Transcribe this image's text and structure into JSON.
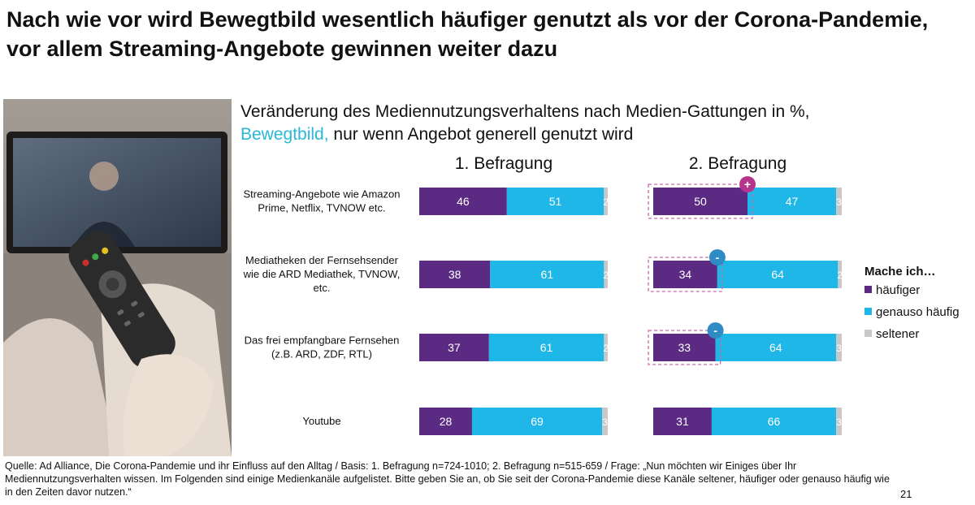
{
  "headline": "Nach wie vor wird Bewegtbild wesentlich häufiger genutzt als vor der Corona-Pandemie, vor allem Streaming-Angebote gewinnen weiter dazu",
  "subtitle": {
    "line1": "Veränderung des Mediennutzungsverhaltens nach Medien-Gattungen in %,",
    "highlight": "Bewegtbild,",
    "line2_rest": " nur wenn Angebot generell genutzt wird"
  },
  "colors": {
    "haeufiger": "#5b2b84",
    "genauso": "#1fb6e8",
    "seltener": "#c8c8c8",
    "plus_marker": "#b5348e",
    "minus_marker": "#2f8bc4",
    "dash": "#c46aa8"
  },
  "chart_data": {
    "type": "bar",
    "orientation": "horizontal",
    "stacked": true,
    "unit": "%",
    "panels": [
      "1. Befragung",
      "2. Befragung"
    ],
    "categories": [
      [
        "Streaming-Angebote wie Amazon",
        "Prime, Netflix, TVNOW etc."
      ],
      [
        "Mediatheken der Fernsehsender",
        "wie die ARD Mediathek, TVNOW,",
        "etc."
      ],
      [
        "Das frei empfangbare Fernsehen",
        "(z.B. ARD, ZDF, RTL)"
      ],
      [
        "Youtube"
      ]
    ],
    "legend_title": "Mache ich…",
    "series": [
      {
        "name": "häufiger",
        "values": [
          [
            46,
            38,
            37,
            28
          ],
          [
            50,
            34,
            33,
            31
          ]
        ]
      },
      {
        "name": "genauso häufig",
        "values": [
          [
            51,
            61,
            61,
            69
          ],
          [
            47,
            64,
            64,
            66
          ]
        ]
      },
      {
        "name": "seltener",
        "values": [
          [
            2,
            2,
            2,
            3
          ],
          [
            3,
            2,
            3,
            3
          ]
        ]
      }
    ],
    "change_markers": [
      {
        "category_index": 0,
        "symbol": "+"
      },
      {
        "category_index": 1,
        "symbol": "-"
      },
      {
        "category_index": 2,
        "symbol": "-"
      }
    ],
    "legend_position": "right"
  },
  "footer": "Quelle: Ad Alliance, Die Corona-Pandemie und ihr Einfluss auf den Alltag / Basis: 1. Befragung n=724-1010; 2. Befragung n=515-659 / Frage: „Nun möchten wir Einiges über Ihr Mediennutzungsverhalten wissen. Im Folgenden sind einige Medienkanäle aufgelistet. Bitte geben Sie an, ob Sie seit der Corona-Pandemie diese Kanäle seltener, häufiger oder genauso häufig wie in den Zeiten davor nutzen.“",
  "page_number": "21"
}
